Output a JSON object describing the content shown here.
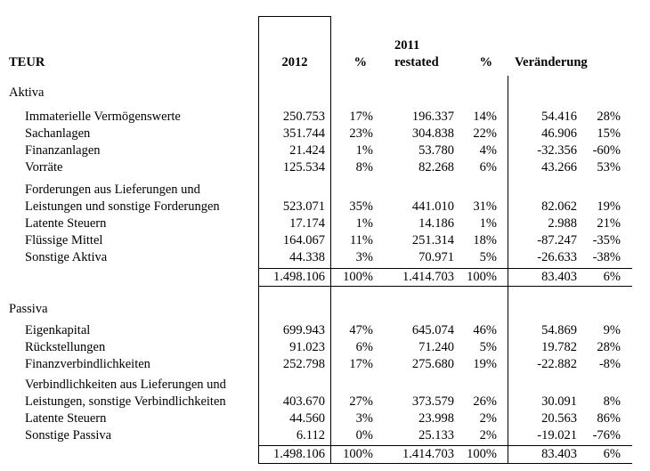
{
  "colors": {
    "background": "#ffffff",
    "text": "#000000",
    "line": "#000000"
  },
  "header": {
    "label": "TEUR",
    "col_2012": "2012",
    "col_pct_1": "%",
    "col_2011": "2011\nrestated",
    "col_pct_2": "%",
    "col_change": "Veränderung"
  },
  "sections": [
    {
      "title": "Aktiva",
      "rows": [
        {
          "label": "Immaterielle Vermögenswerte",
          "v2012": "250.753",
          "p2012": "17%",
          "v2011": "196.337",
          "p2011": "14%",
          "chg": "54.416",
          "chgp": "28%"
        },
        {
          "label": "Sachanlagen",
          "v2012": "351.744",
          "p2012": "23%",
          "v2011": "304.838",
          "p2011": "22%",
          "chg": "46.906",
          "chgp": "15%"
        },
        {
          "label": "Finanzanlagen",
          "v2012": "21.424",
          "p2012": "1%",
          "v2011": "53.780",
          "p2011": "4%",
          "chg": "-32.356",
          "chgp": "-60%"
        },
        {
          "label": "Vorräte",
          "v2012": "125.534",
          "p2012": "8%",
          "v2011": "82.268",
          "p2011": "6%",
          "chg": "43.266",
          "chgp": "53%"
        },
        {
          "label": "Forderungen aus Lieferungen und\nLeistungen und sonstige Forderungen",
          "v2012": "523.071",
          "p2012": "35%",
          "v2011": "441.010",
          "p2011": "31%",
          "chg": "82.062",
          "chgp": "19%"
        },
        {
          "label": "Latente Steuern",
          "v2012": "17.174",
          "p2012": "1%",
          "v2011": "14.186",
          "p2011": "1%",
          "chg": "2.988",
          "chgp": "21%"
        },
        {
          "label": "Flüssige Mittel",
          "v2012": "164.067",
          "p2012": "11%",
          "v2011": "251.314",
          "p2011": "18%",
          "chg": "-87.247",
          "chgp": "-35%"
        },
        {
          "label": "Sonstige Aktiva",
          "v2012": "44.338",
          "p2012": "3%",
          "v2011": "70.971",
          "p2011": "5%",
          "chg": "-26.633",
          "chgp": "-38%"
        }
      ],
      "total": {
        "v2012": "1.498.106",
        "p2012": "100%",
        "v2011": "1.414.703",
        "p2011": "100%",
        "chg": "83.403",
        "chgp": "6%"
      }
    },
    {
      "title": "Passiva",
      "rows": [
        {
          "label": "Eigenkapital",
          "v2012": "699.943",
          "p2012": "47%",
          "v2011": "645.074",
          "p2011": "46%",
          "chg": "54.869",
          "chgp": "9%"
        },
        {
          "label": "Rückstellungen",
          "v2012": "91.023",
          "p2012": "6%",
          "v2011": "71.240",
          "p2011": "5%",
          "chg": "19.782",
          "chgp": "28%"
        },
        {
          "label": "Finanzverbindlichkeiten",
          "v2012": "252.798",
          "p2012": "17%",
          "v2011": "275.680",
          "p2011": "19%",
          "chg": "-22.882",
          "chgp": "-8%"
        },
        {
          "label": "Verbindlichkeiten aus Lieferungen und\nLeistungen, sonstige Verbindlichkeiten",
          "v2012": "403.670",
          "p2012": "27%",
          "v2011": "373.579",
          "p2011": "26%",
          "chg": "30.091",
          "chgp": "8%"
        },
        {
          "label": "Latente Steuern",
          "v2012": "44.560",
          "p2012": "3%",
          "v2011": "23.998",
          "p2011": "2%",
          "chg": "20.563",
          "chgp": "86%"
        },
        {
          "label": "Sonstige Passiva",
          "v2012": "6.112",
          "p2012": "0%",
          "v2011": "25.133",
          "p2011": "2%",
          "chg": "-19.021",
          "chgp": "-76%"
        }
      ],
      "total": {
        "v2012": "1.498.106",
        "p2012": "100%",
        "v2011": "1.414.703",
        "p2011": "100%",
        "chg": "83.403",
        "chgp": "6%"
      }
    }
  ]
}
